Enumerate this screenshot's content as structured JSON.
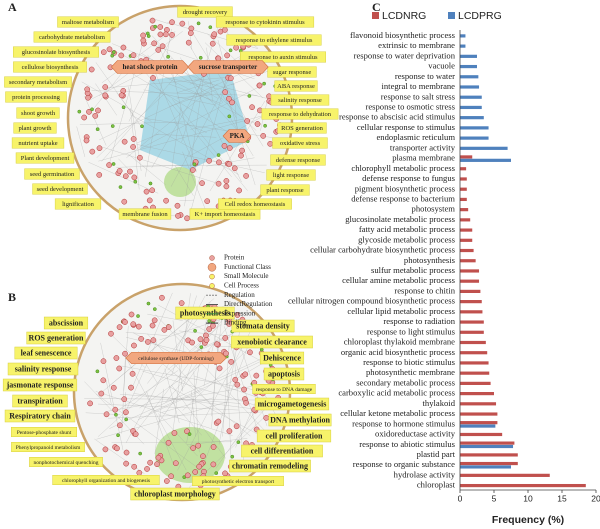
{
  "panel_a": {
    "label": "A",
    "function_labels": [
      "maltose metabolism",
      "carbohydrate metabolism",
      "glucosinolate biosynthesis",
      "cellulose biosynthesis",
      "secondary metabolism",
      "protein processing",
      "shoot growth",
      "plant growth",
      "nutrient uptake",
      "Plant development",
      "seed germination",
      "seed development",
      "lignification",
      "membrane fusion",
      "K+ import homeostasis",
      "drought recovery",
      "response to cytokinin stimulus",
      "response to ethylene stimulus",
      "response to auxin stimulus",
      "sugar response",
      "ABA response",
      "salinity response",
      "response to dehydration",
      "ROS generation",
      "oxidative stress",
      "defense response",
      "light response",
      "plant response",
      "Cell redox homeostasis"
    ],
    "class_labels": [
      "heat shock protein",
      "sucrose transporter",
      "PKA"
    ]
  },
  "legend": [
    "Protein",
    "Functional Class",
    "Small Molecule",
    "Cell Process",
    "Regulation",
    "DirectRegulation",
    "Expression",
    "Binding"
  ],
  "panel_b": {
    "label": "B",
    "function_labels": [
      "photosynthesis",
      "stomata density",
      "xenobiotic clearance",
      "Dehiscence",
      "apoptosis",
      "response to DNA damage",
      "microgametogenesis",
      "DNA methylation",
      "cell proliferation",
      "cell differentiation",
      "chromatin remodeling",
      "photosynthetic electron transport",
      "chloroplast morphology",
      "abscission",
      "ROS generation",
      "leaf senescence",
      "salinity response",
      "jasmonate response",
      "transpiration",
      "Respiratory chain",
      "Pentose-phosphate shunt",
      "Phenylpropanoid metabolism",
      "nonphotochemical quenching",
      "chlorophyll organization and biogenesis"
    ],
    "class_labels": [
      "cellulose synthase (UDP-forming)"
    ]
  },
  "chart_data": {
    "type": "hbar",
    "panel_label": "C",
    "x_label": "Frequency (%)",
    "categories": [
      "flavonoid biosynthetic process",
      "extrinsic to membrane",
      "response to water deprivation",
      "vacuole",
      "response to water",
      "integral to membrane",
      "response to salt stress",
      "response to osmotic stress",
      "response to abscisic acid stimulus",
      "cellular response to stimulus",
      "endoplasmic reticulum",
      "transporter activity",
      "plasma membrane",
      "chlorophyll metabolic process",
      "defense response to fungus",
      "pigment biosynthetic process",
      "defense response to bacterium",
      "photosystem",
      "glucosinolate metabolic process",
      "fatty acid metabolic process",
      "glycoside metabolic process",
      "cellular carbohydrate biosynthetic process",
      "photosynthesis",
      "sulfur metabolic process",
      "cellular amine metabolic process",
      "response to chitin",
      "cellular nitrogen compound biosynthetic process",
      "cellular lipid metabolic process",
      "response to radiation",
      "response to light stimulus",
      "chloroplast thylakoid membrane",
      "organic acid biosynthetic process",
      "response to biotic stimulus",
      "photosynthetic membrane",
      "secondary metabolic process",
      "carboxylic acid metabolic process",
      "thylakoid",
      "cellular ketone metabolic process",
      "response to hormone stimulus",
      "oxidoreductase activity",
      "response to abiotic stimulus",
      "plastid part",
      "response to organic substance",
      "hydrolase activity",
      "chloroplast"
    ],
    "series": [
      {
        "name": "LCDNRG",
        "color": "#c0504d",
        "values": [
          null,
          null,
          null,
          null,
          null,
          null,
          null,
          null,
          null,
          null,
          null,
          null,
          1.8,
          0.9,
          1.0,
          1.0,
          1.0,
          1.2,
          1.5,
          1.8,
          1.8,
          2.0,
          2.3,
          2.8,
          2.8,
          3.0,
          3.2,
          3.3,
          3.5,
          3.5,
          3.8,
          4.0,
          4.2,
          4.3,
          4.5,
          5.0,
          5.3,
          5.5,
          5.5,
          6.2,
          8.0,
          8.5,
          8.5,
          13.2,
          18.5
        ]
      },
      {
        "name": "LCDPRG",
        "color": "#4f81bd",
        "values": [
          0.8,
          0.8,
          2.5,
          2.5,
          2.7,
          2.8,
          3.2,
          3.2,
          3.5,
          4.2,
          4.2,
          7.0,
          7.5,
          null,
          null,
          null,
          null,
          null,
          null,
          null,
          null,
          null,
          null,
          null,
          null,
          null,
          null,
          null,
          null,
          null,
          null,
          null,
          null,
          null,
          null,
          null,
          null,
          null,
          5.2,
          null,
          7.8,
          null,
          7.5,
          null,
          null
        ]
      }
    ],
    "xlim": [
      0,
      20
    ],
    "xticks": [
      0,
      5,
      10,
      15,
      20
    ],
    "legend_position": "top"
  }
}
